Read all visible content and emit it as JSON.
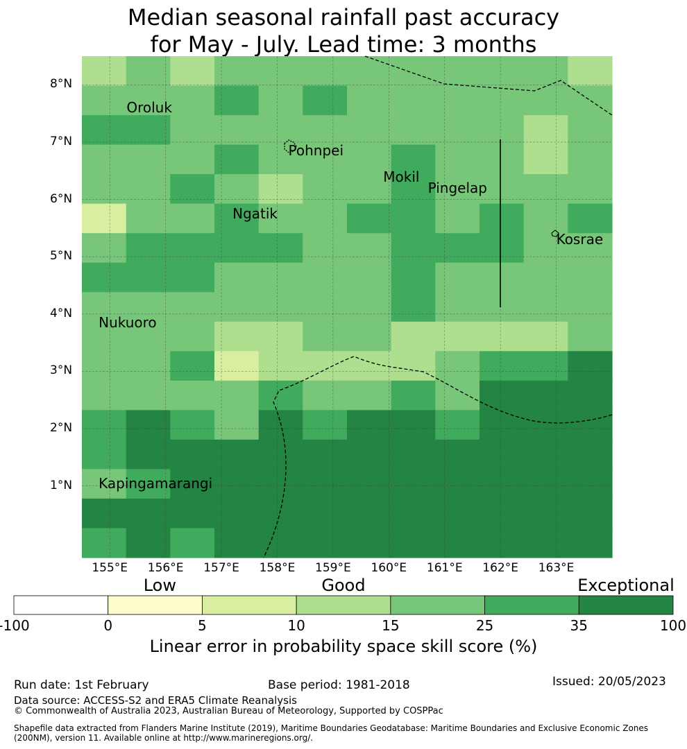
{
  "title_line1": "Median seasonal rainfall past accuracy",
  "title_line2": "for May - July. Lead time: 3 months",
  "chart_data": {
    "type": "heatmap",
    "lon_range": [
      154.5,
      164.0
    ],
    "lat_range": [
      -0.25,
      8.5
    ],
    "lon_ticks": [
      "155°E",
      "156°E",
      "157°E",
      "158°E",
      "159°E",
      "160°E",
      "161°E",
      "162°E",
      "163°E"
    ],
    "lat_ticks": [
      "1°N",
      "2°N",
      "3°N",
      "4°N",
      "5°N",
      "6°N",
      "7°N",
      "8°N"
    ],
    "cell_size_deg": [
      0.83,
      0.55
    ],
    "grid_note": "rows from north (top) to south; values are category indices 0-6",
    "grid": [
      [
        3,
        4,
        3,
        4,
        4,
        4,
        4,
        4,
        4,
        4,
        4,
        3
      ],
      [
        4,
        4,
        4,
        5,
        4,
        5,
        4,
        4,
        4,
        4,
        4,
        4
      ],
      [
        5,
        5,
        4,
        4,
        4,
        4,
        4,
        4,
        4,
        4,
        3,
        4
      ],
      [
        4,
        4,
        4,
        5,
        4,
        4,
        4,
        5,
        4,
        4,
        3,
        4
      ],
      [
        4,
        4,
        5,
        4,
        3,
        4,
        4,
        5,
        4,
        4,
        4,
        4
      ],
      [
        2,
        4,
        4,
        5,
        4,
        4,
        5,
        5,
        4,
        5,
        4,
        5
      ],
      [
        4,
        5,
        5,
        5,
        5,
        4,
        4,
        5,
        5,
        5,
        4,
        4
      ],
      [
        5,
        5,
        5,
        4,
        4,
        4,
        4,
        5,
        4,
        4,
        4,
        4
      ],
      [
        4,
        4,
        4,
        4,
        4,
        4,
        4,
        5,
        4,
        4,
        4,
        4
      ],
      [
        4,
        4,
        4,
        3,
        3,
        4,
        4,
        3,
        3,
        3,
        3,
        4
      ],
      [
        4,
        4,
        5,
        2,
        3,
        3,
        3,
        3,
        4,
        5,
        5,
        6
      ],
      [
        4,
        4,
        4,
        4,
        5,
        4,
        4,
        5,
        4,
        6,
        6,
        6
      ],
      [
        5,
        6,
        5,
        4,
        6,
        5,
        6,
        6,
        5,
        6,
        6,
        6
      ],
      [
        5,
        6,
        6,
        6,
        6,
        6,
        6,
        6,
        6,
        6,
        6,
        6
      ],
      [
        4,
        5,
        6,
        6,
        6,
        6,
        6,
        6,
        6,
        6,
        6,
        6
      ],
      [
        6,
        6,
        6,
        6,
        6,
        6,
        6,
        6,
        6,
        6,
        6,
        6
      ],
      [
        5,
        6,
        5,
        6,
        6,
        6,
        6,
        6,
        6,
        6,
        6,
        6
      ]
    ],
    "categories": [
      {
        "range": [
          -100,
          0
        ],
        "color": "#ffffff"
      },
      {
        "range": [
          0,
          5
        ],
        "color": "#fefecd"
      },
      {
        "range": [
          5,
          10
        ],
        "color": "#d8efa2"
      },
      {
        "range": [
          10,
          15
        ],
        "color": "#addf8e"
      },
      {
        "range": [
          15,
          25
        ],
        "color": "#78c679"
      },
      {
        "range": [
          25,
          35
        ],
        "color": "#41ab5d"
      },
      {
        "range": [
          35,
          100
        ],
        "color": "#238443"
      }
    ],
    "colorbar_ticks": [
      "-100",
      "0",
      "5",
      "10",
      "15",
      "25",
      "35",
      "100"
    ],
    "colorbar_category_labels": [
      "Low",
      "Good",
      "Exceptional"
    ],
    "colorbar_title": "Linear error in probability space skill score (%)",
    "places": [
      {
        "name": "Oroluk",
        "lon": 155.3,
        "lat": 7.6
      },
      {
        "name": "Pohnpei",
        "lon": 158.2,
        "lat": 6.85
      },
      {
        "name": "Mokil",
        "lon": 159.9,
        "lat": 6.4
      },
      {
        "name": "Pingelap",
        "lon": 160.7,
        "lat": 6.2
      },
      {
        "name": "Ngatik",
        "lon": 157.2,
        "lat": 5.75
      },
      {
        "name": "Kosrae",
        "lon": 163.0,
        "lat": 5.3
      },
      {
        "name": "Nukuoro",
        "lon": 154.8,
        "lat": 3.85
      },
      {
        "name": "Kapingamarangi",
        "lon": 154.8,
        "lat": 1.05
      }
    ]
  },
  "footer": {
    "run_date": "Run date: 1st February",
    "base_period": "Base period: 1981-2018",
    "issued": "Issued: 20/05/2023",
    "data_source": "Data source: ACCESS-S2 and ERA5 Climate Reanalysis",
    "copyright": "© Commonwealth of Australia 2023, Australian Bureau of Meteorology, Supported by COSPPac",
    "shapefile_line1": "Shapefile data extracted from Flanders Marine Institute (2019), Maritime Boundaries Geodatabase: Maritime Boundaries and Exclusive Economic Zones",
    "shapefile_line2": "(200NM), version 11. Available online at http://www.marineregions.org/."
  }
}
